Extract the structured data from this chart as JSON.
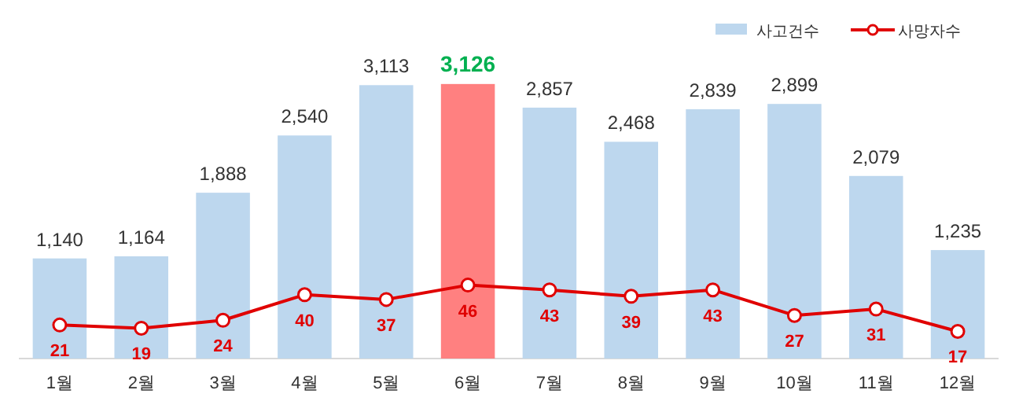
{
  "chart_data": {
    "type": "bar",
    "categories": [
      "1월",
      "2월",
      "3월",
      "4월",
      "5월",
      "6월",
      "7월",
      "8월",
      "9월",
      "10월",
      "11월",
      "12월"
    ],
    "series": [
      {
        "name": "사고건수",
        "value_labels": [
          "1,140",
          "1,164",
          "1,888",
          "2,540",
          "3,113",
          "3,126",
          "2,857",
          "2,468",
          "2,839",
          "2,899",
          "2,079",
          "1,235"
        ],
        "color": "#bdd7ee",
        "colors": [
          "#bdd7ee",
          "#bdd7ee",
          "#bdd7ee",
          "#bdd7ee",
          "#bdd7ee",
          "#ff8080",
          "#bdd7ee",
          "#bdd7ee",
          "#bdd7ee",
          "#bdd7ee",
          "#bdd7ee",
          "#bdd7ee"
        ],
        "values": [
          1140,
          1164,
          1888,
          2540,
          3113,
          3126,
          2857,
          2468,
          2839,
          2899,
          2079,
          1235
        ]
      },
      {
        "name": "사망자수",
        "type": "line",
        "axis": "y2",
        "color": "#e00000",
        "marker": "circle",
        "values": [
          21,
          19,
          24,
          40,
          37,
          46,
          43,
          39,
          43,
          27,
          31,
          17
        ]
      }
    ],
    "tick_labels": "x",
    "data_labels": true,
    "grid": false,
    "legend": "top right"
  }
}
